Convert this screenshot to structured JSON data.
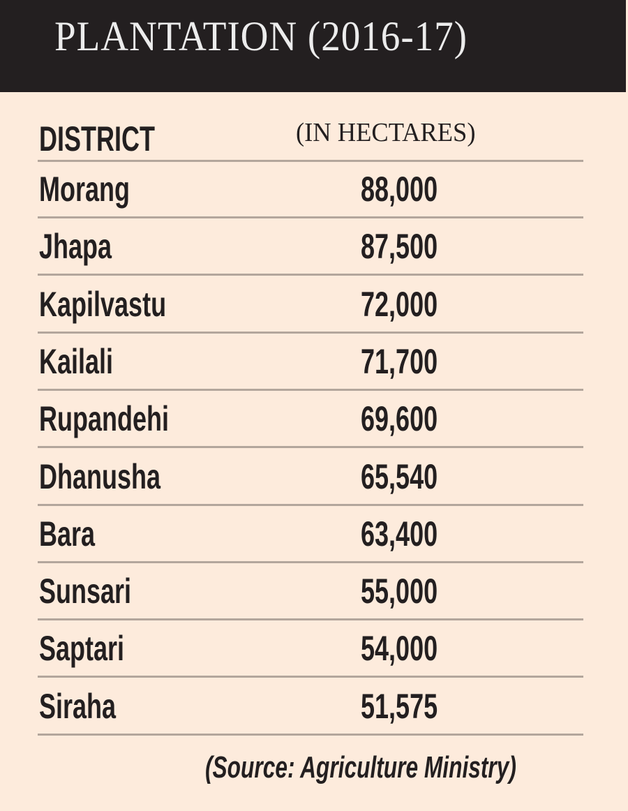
{
  "header": {
    "title": "PLANTATION (2016-17)"
  },
  "table": {
    "columns": [
      "DISTRICT",
      "(IN HECTARES)"
    ],
    "rows": [
      {
        "district": "Morang",
        "hectares": "88,000"
      },
      {
        "district": "Jhapa",
        "hectares": "87,500"
      },
      {
        "district": "Kapilvastu",
        "hectares": "72,000"
      },
      {
        "district": "Kailali",
        "hectares": "71,700"
      },
      {
        "district": "Rupandehi",
        "hectares": "69,600"
      },
      {
        "district": "Dhanusha",
        "hectares": "65,540"
      },
      {
        "district": "Bara",
        "hectares": "63,400"
      },
      {
        "district": "Sunsari",
        "hectares": "55,000"
      },
      {
        "district": "Saptari",
        "hectares": "54,000"
      },
      {
        "district": "Siraha",
        "hectares": "51,575"
      }
    ]
  },
  "footer": {
    "source": "(Source: Agriculture Ministry)"
  },
  "colors": {
    "header_bg": "#231f20",
    "panel_bg": "#fdebdc",
    "text": "#231f20",
    "rule": "#b3a69c"
  },
  "chart_data": {
    "type": "table",
    "title": "PLANTATION (2016-17)",
    "columns": [
      "DISTRICT",
      "(IN HECTARES)"
    ],
    "categories": [
      "Morang",
      "Jhapa",
      "Kapilvastu",
      "Kailali",
      "Rupandehi",
      "Dhanusha",
      "Bara",
      "Sunsari",
      "Saptari",
      "Siraha"
    ],
    "values": [
      88000,
      87500,
      72000,
      71700,
      69600,
      65540,
      63400,
      55000,
      54000,
      51575
    ],
    "unit": "hectares",
    "source": "(Source: Agriculture Ministry)"
  }
}
